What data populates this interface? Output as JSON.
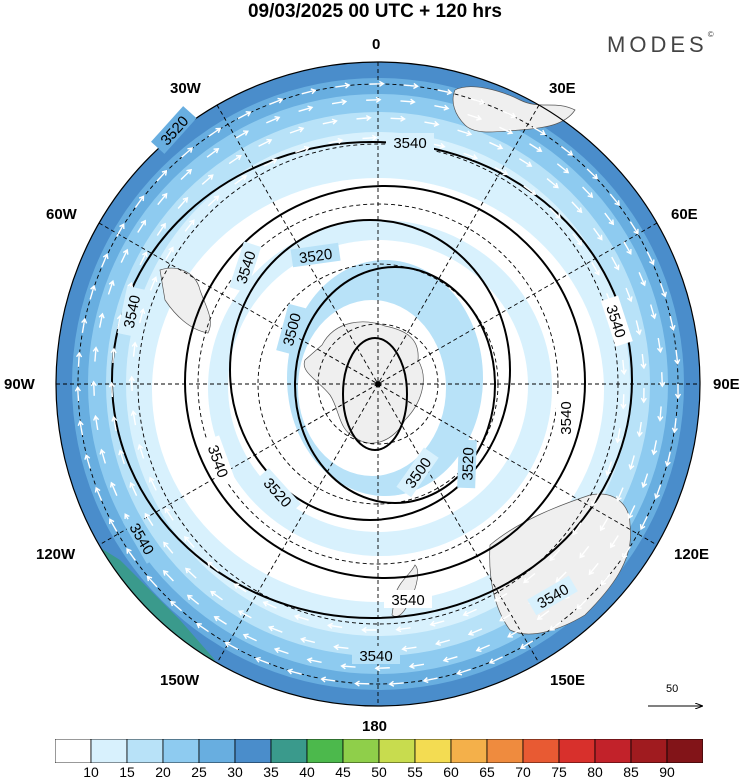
{
  "title": "09/03/2025  00 UTC  + 120 hrs",
  "brand": {
    "name": "MODES",
    "mark": "©"
  },
  "longitude_labels": {
    "top": "0",
    "bottom": "180",
    "left": "90W",
    "right": "90E",
    "n30w": "30W",
    "n30e": "30E",
    "n60w": "60W",
    "n60e": "60E",
    "s120w": "120W",
    "s120e": "120E",
    "s150w": "150W",
    "s150e": "150E"
  },
  "contour_labels": [
    "3540",
    "3520",
    "3500"
  ],
  "vector_reference": {
    "value": "50"
  },
  "colorbar": {
    "ticks": [
      "10",
      "15",
      "20",
      "25",
      "30",
      "35",
      "40",
      "45",
      "50",
      "55",
      "60",
      "65",
      "70",
      "75",
      "80",
      "85",
      "90"
    ],
    "colors": [
      "#ffffff",
      "#d8f1fd",
      "#b8e2f8",
      "#8ecbf0",
      "#68aee0",
      "#4a8dcb",
      "#3a9a8c",
      "#4cb94c",
      "#8fcf4a",
      "#c8dc4e",
      "#f3dc52",
      "#f4b04a",
      "#ef8b3e",
      "#e85a33",
      "#d8302c",
      "#c2222a",
      "#a01b1f",
      "#821418"
    ]
  },
  "colors": {
    "band_outer": "#4a8dcb",
    "band_2": "#68aee0",
    "band_3": "#8ecbf0",
    "band_4": "#b8e2f8",
    "band_5": "#d8f1fd",
    "land": "#efefef",
    "sector_green": "#3a9a8c"
  }
}
